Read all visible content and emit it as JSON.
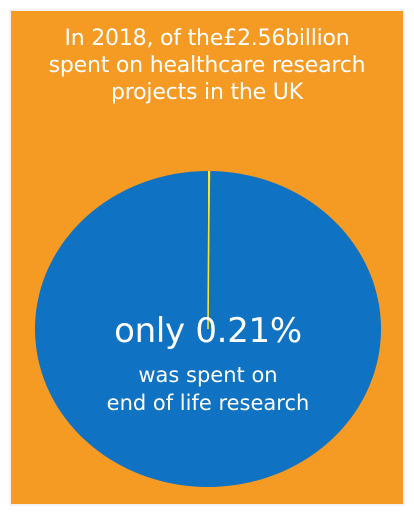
{
  "headline": {
    "prefix": "In 2018, of the",
    "amount": "£2.56",
    "suffix": "billion",
    "line2": "spent on healthcare research",
    "line3": "projects in the UK"
  },
  "pie": {
    "big_text": "only 0.21%",
    "sub_text_1": "was spent on",
    "sub_text_2": "end of life research"
  },
  "colors": {
    "background": "#f59a23",
    "pie_main": "#0f72c2",
    "pie_slice": "#f5e62a",
    "text": "#ffffff"
  },
  "chart_data": {
    "type": "pie",
    "title": "",
    "slices": [
      {
        "label": "end of life research",
        "value": 0.21
      },
      {
        "label": "",
        "value": 99.79
      }
    ],
    "units": "%"
  }
}
